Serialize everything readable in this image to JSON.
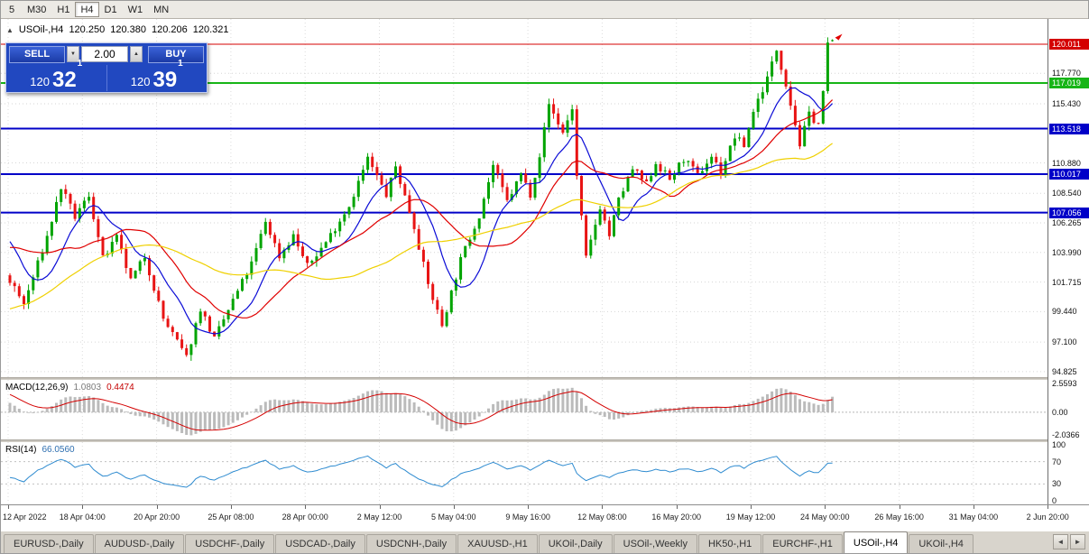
{
  "toolbar": {
    "periods": [
      "5",
      "M30",
      "H1",
      "H4",
      "D1",
      "W1",
      "MN"
    ],
    "active": "H4"
  },
  "chart": {
    "header": {
      "collapse_icon": "▲",
      "title": "USOil-,H4",
      "open": "120.250",
      "high": "120.380",
      "low": "120.206",
      "close": "120.321"
    },
    "one_click": {
      "sell_label": "SELL",
      "buy_label": "BUY",
      "volume": "2.00",
      "spin_down": "▼",
      "spin_up": "▲",
      "sell_price": {
        "prefix": "120",
        "big": "32",
        "sup": "1"
      },
      "buy_price": {
        "prefix": "120",
        "big": "39",
        "sup": "1"
      }
    },
    "y_axis": {
      "price_top": 121.95,
      "price_bottom": 94.4,
      "labels": [
        "117.770",
        "115.430",
        "110.880",
        "108.540",
        "106.265",
        "103.990",
        "101.715",
        "99.440",
        "97.100",
        "94.825"
      ]
    },
    "levels": [
      {
        "value": 120.011,
        "label": "120.011",
        "color": "#D40000",
        "width": 1
      },
      {
        "value": 117.019,
        "label": "117.019",
        "color": "#17B517",
        "width": 2
      },
      {
        "value": 113.518,
        "label": "113.518",
        "color": "#0000C8",
        "width": 2
      },
      {
        "value": 110.017,
        "label": "110.017",
        "color": "#0000C8",
        "width": 2
      },
      {
        "value": 107.056,
        "label": "107.056",
        "color": "#0000C8",
        "width": 2
      }
    ]
  },
  "chart_data": {
    "type": "candlestick",
    "symbol": "USOil-",
    "timeframe": "H4",
    "bars": 178,
    "prehistory_bars": 56,
    "last_candle": {
      "open": 120.25,
      "high": 120.38,
      "low": 120.206,
      "close": 120.321
    },
    "prehistory_anchors": [
      [
        -56,
        99.0
      ],
      [
        -44,
        93.8
      ],
      [
        -30,
        96.2
      ],
      [
        -14,
        104.6
      ],
      [
        -7,
        107.6
      ],
      [
        -3,
        103.2
      ]
    ],
    "price_anchors": [
      [
        0,
        101.8
      ],
      [
        3,
        100.0
      ],
      [
        8,
        105.2
      ],
      [
        11,
        109.0
      ],
      [
        14,
        106.7
      ],
      [
        17,
        108.4
      ],
      [
        20,
        103.5
      ],
      [
        23,
        105.1
      ],
      [
        26,
        101.8
      ],
      [
        29,
        103.7
      ],
      [
        33,
        98.9
      ],
      [
        38,
        95.9
      ],
      [
        41,
        99.7
      ],
      [
        44,
        97.3
      ],
      [
        48,
        100.3
      ],
      [
        52,
        103.1
      ],
      [
        55,
        106.4
      ],
      [
        58,
        103.7
      ],
      [
        61,
        105.3
      ],
      [
        64,
        102.9
      ],
      [
        68,
        104.8
      ],
      [
        73,
        107.6
      ],
      [
        77,
        111.2
      ],
      [
        81,
        108.4
      ],
      [
        83,
        110.6
      ],
      [
        87,
        106.0
      ],
      [
        90,
        101.5
      ],
      [
        93,
        98.4
      ],
      [
        97,
        103.4
      ],
      [
        101,
        106.9
      ],
      [
        104,
        110.7
      ],
      [
        107,
        107.9
      ],
      [
        110,
        110.0
      ],
      [
        112,
        108.5
      ],
      [
        114,
        111.5
      ],
      [
        116,
        115.4
      ],
      [
        119,
        113.2
      ],
      [
        121,
        115.1
      ],
      [
        122,
        109.8
      ],
      [
        124,
        103.5
      ],
      [
        127,
        107.5
      ],
      [
        129,
        105.3
      ],
      [
        131,
        108.0
      ],
      [
        134,
        110.4
      ],
      [
        137,
        109.2
      ],
      [
        139,
        110.9
      ],
      [
        142,
        109.6
      ],
      [
        145,
        111.2
      ],
      [
        148,
        109.9
      ],
      [
        151,
        111.4
      ],
      [
        153,
        110.2
      ],
      [
        156,
        112.9
      ],
      [
        158,
        112.2
      ],
      [
        160,
        114.9
      ],
      [
        163,
        117.4
      ],
      [
        165,
        119.6
      ],
      [
        167,
        117.0
      ],
      [
        170,
        112.3
      ],
      [
        172,
        114.6
      ],
      [
        174,
        113.9
      ],
      [
        175,
        116.2
      ],
      [
        176,
        120.1
      ],
      [
        177,
        120.321
      ]
    ],
    "moving_averages": [
      {
        "period": 10,
        "color": "#0B0BD6"
      },
      {
        "period": 21,
        "color": "#E00000"
      },
      {
        "period": 50,
        "color": "#EFD000"
      }
    ],
    "colors": {
      "up": "#00A400",
      "down": "#E81414",
      "macd_hist": "#BBBBBB",
      "macd_signal": "#D40000",
      "rsi": "#2E8BD0"
    }
  },
  "macd": {
    "label": "MACD(12,26,9)",
    "value_main": "1.0803",
    "value_signal": "0.4474",
    "params": {
      "fast": 12,
      "slow": 26,
      "signal": 9
    },
    "axis": [
      "2.5593",
      "0.00",
      "-2.0366"
    ]
  },
  "rsi": {
    "label": "RSI(14)",
    "value": "66.0560",
    "period": 14,
    "levels": [
      70,
      30
    ],
    "axis": [
      "100",
      "70",
      "30",
      "0"
    ]
  },
  "time_axis": {
    "labels": [
      "12 Apr 2022",
      "18 Apr 04:00",
      "20 Apr 20:00",
      "25 Apr 08:00",
      "28 Apr 00:00",
      "2 May 12:00",
      "5 May 04:00",
      "9 May 16:00",
      "12 May 08:00",
      "16 May 20:00",
      "19 May 12:00",
      "24 May 00:00",
      "26 May 16:00",
      "31 May 04:00",
      "2 Jun 20:00"
    ]
  },
  "tabs": {
    "active_index": 10,
    "nav_left": "◄",
    "nav_right": "►",
    "items": [
      "EURUSD-,Daily",
      "AUDUSD-,Daily",
      "USDCHF-,Daily",
      "USDCAD-,Daily",
      "USDCNH-,Daily",
      "XAUUSD-,H1",
      "UKOil-,Daily",
      "USOil-,Weekly",
      "HK50-,H1",
      "EURCHF-,H1",
      "USOil-,H4",
      "UKOil-,H4"
    ]
  }
}
